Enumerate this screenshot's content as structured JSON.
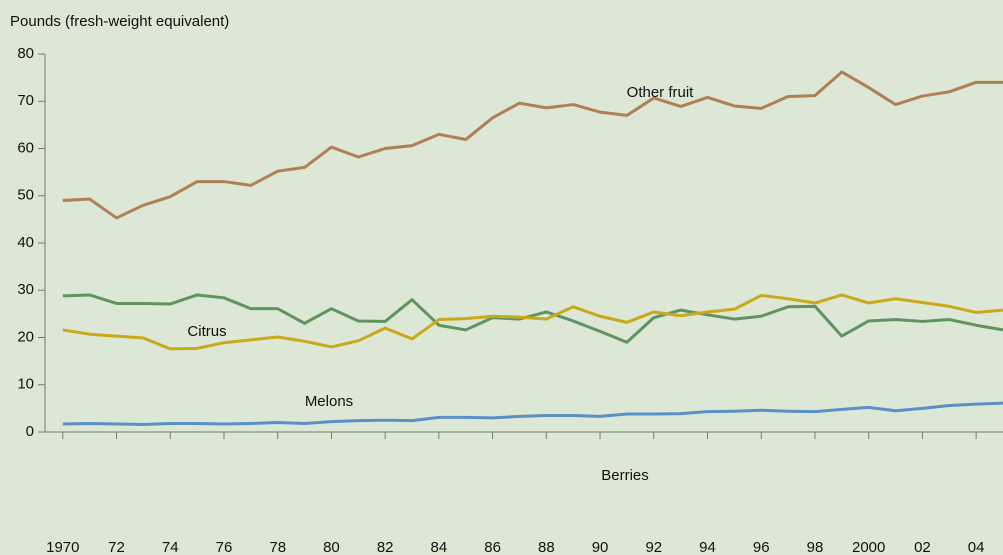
{
  "chart_data": {
    "type": "line",
    "y_axis_label": "Pounds (fresh-weight equivalent)",
    "x": [
      1970,
      1971,
      1972,
      1973,
      1974,
      1975,
      1976,
      1977,
      1978,
      1979,
      1980,
      1981,
      1982,
      1983,
      1984,
      1985,
      1986,
      1987,
      1988,
      1989,
      1990,
      1991,
      1992,
      1993,
      1994,
      1995,
      1996,
      1997,
      1998,
      1999,
      2000,
      2001,
      2002,
      2003,
      2004,
      2005
    ],
    "series": [
      {
        "name": "Other fruit",
        "color": "#b07f55",
        "values": [
          49,
          49.3,
          45.3,
          48,
          49.8,
          53,
          53,
          52.2,
          55.2,
          56,
          60.3,
          58.2,
          60,
          60.6,
          63,
          61.9,
          66.5,
          69.6,
          68.6,
          69.3,
          67.7,
          67,
          70.7,
          68.9,
          70.8,
          69,
          68.5,
          71,
          71.2,
          76.2,
          72.9,
          69.3,
          71.1,
          72,
          74,
          74
        ]
      },
      {
        "name": "Citrus",
        "color": "#5e9461",
        "values": [
          28.8,
          29,
          27.2,
          27.2,
          27.1,
          29,
          28.4,
          26.1,
          26.1,
          23,
          26.1,
          23.5,
          23.4,
          28,
          22.6,
          21.6,
          24.2,
          23.9,
          25.4,
          23.5,
          21.3,
          19,
          24.2,
          25.8,
          24.8,
          23.9,
          24.5,
          26.5,
          26.6,
          20.3,
          23.5,
          23.8,
          23.4,
          23.8,
          22.6,
          21.6
        ]
      },
      {
        "name": "Melons",
        "color": "#c9a81a",
        "values": [
          21.6,
          20.7,
          20.3,
          19.9,
          17.6,
          17.7,
          18.9,
          19.5,
          20.1,
          19.2,
          18,
          19.3,
          22,
          19.7,
          23.8,
          24,
          24.5,
          24.3,
          23.9,
          26.5,
          24.5,
          23.2,
          25.4,
          24.6,
          25.4,
          26,
          28.9,
          28.2,
          27.3,
          29,
          27.3,
          28.2,
          27.4,
          26.6,
          25.3,
          25.8
        ]
      },
      {
        "name": "Berries",
        "color": "#5b8fc7",
        "values": [
          1.7,
          1.8,
          1.7,
          1.6,
          1.8,
          1.8,
          1.7,
          1.8,
          2,
          1.8,
          2.2,
          2.4,
          2.5,
          2.4,
          3.1,
          3.1,
          3,
          3.3,
          3.5,
          3.5,
          3.3,
          3.8,
          3.8,
          3.9,
          4.3,
          4.4,
          4.6,
          4.4,
          4.3,
          4.8,
          5.2,
          4.5,
          5,
          5.6,
          5.9,
          6.1
        ]
      }
    ],
    "xlim": [
      1969.3,
      2005
    ],
    "xticks": [
      1970,
      {
        "value": 1972,
        "label": "72"
      },
      {
        "value": 1974,
        "label": "74"
      },
      {
        "value": 1976,
        "label": "76"
      },
      {
        "value": 1978,
        "label": "78"
      },
      {
        "value": 1980,
        "label": "80"
      },
      {
        "value": 1982,
        "label": "82"
      },
      {
        "value": 1984,
        "label": "84"
      },
      {
        "value": 1986,
        "label": "86"
      },
      {
        "value": 1988,
        "label": "88"
      },
      {
        "value": 1990,
        "label": "90"
      },
      {
        "value": 1992,
        "label": "92"
      },
      {
        "value": 1994,
        "label": "94"
      },
      {
        "value": 1996,
        "label": "96"
      },
      {
        "value": 1998,
        "label": "98"
      },
      2000,
      {
        "value": 2002,
        "label": "02"
      },
      {
        "value": 2004,
        "label": "04"
      }
    ],
    "ylim": [
      0,
      80
    ],
    "yticks": [
      0,
      10,
      20,
      30,
      40,
      50,
      60,
      70,
      80
    ]
  }
}
